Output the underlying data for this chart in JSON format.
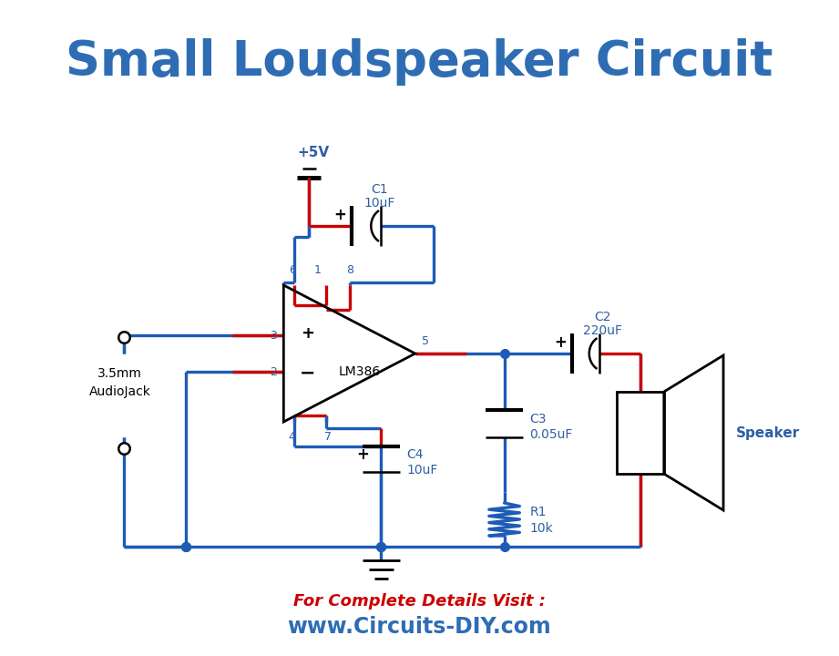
{
  "title": "Small Loudspeaker Circuit",
  "title_color": "#2E6DB4",
  "title_fontsize": 38,
  "wire_color": "#1E5BB5",
  "red_wire_color": "#CC0000",
  "label_color": "#2E5FA3",
  "bg_color": "#FFFFFF",
  "footer_line1": "For Complete Details Visit :",
  "footer_line2": "www.Circuits-DIY.com",
  "footer_color1": "#CC0000",
  "footer_color2": "#2E6DB4",
  "footer_fontsize1": 13,
  "footer_fontsize2": 17,
  "lw": 2.4
}
